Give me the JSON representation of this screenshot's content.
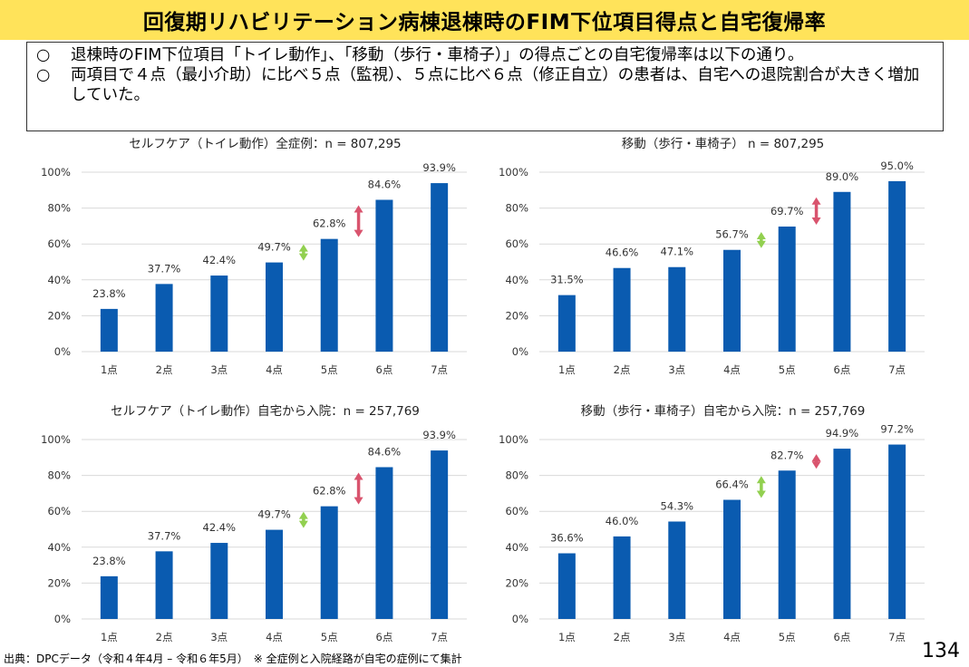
{
  "title": "回復期リハビリテーション病棟退棟時のFIM下位項目得点と自宅復帰率",
  "summary": [
    {
      "mark": "○",
      "text": "退棟時のFIM下位項目「トイレ動作」、「移動（歩行・車椅子）」の得点ごとの自宅復帰率は以下の通り。"
    },
    {
      "mark": "○",
      "text": "両項目で４点（最小介助）に比べ５点（監視）、５点に比べ６点（修正自立）の患者は、自宅への退院割合が大きく増加していた。"
    }
  ],
  "colors": {
    "bar": "#0a5bb0",
    "grid": "#d9d9d9",
    "arrow_green": "#92d050",
    "arrow_red": "#d9546e",
    "title_bg": "#ffe35a"
  },
  "chart_data": [
    {
      "type": "bar",
      "title": "セルフケア（トイレ動作）全症例：n = 807,295",
      "categories": [
        "1点",
        "2点",
        "3点",
        "4点",
        "5点",
        "6点",
        "7点"
      ],
      "values": [
        23.8,
        37.7,
        42.4,
        49.7,
        62.8,
        84.6,
        93.9
      ],
      "value_labels": [
        "23.8%",
        "37.7%",
        "42.4%",
        "49.7%",
        "62.8%",
        "84.6%",
        "93.9%"
      ],
      "y_ticks": [
        0,
        20,
        40,
        60,
        80,
        100
      ],
      "y_tick_labels": [
        "0%",
        "20%",
        "40%",
        "60%",
        "80%",
        "100%"
      ],
      "ylim": [
        0,
        100
      ],
      "grid": true,
      "annotations": [
        {
          "type": "double-arrow",
          "color": "green",
          "between": [
            "4点",
            "5点"
          ]
        },
        {
          "type": "double-arrow",
          "color": "red",
          "between": [
            "5点",
            "6点"
          ]
        }
      ]
    },
    {
      "type": "bar",
      "title": "移動（歩行・車椅子） n = 807,295",
      "categories": [
        "1点",
        "2点",
        "3点",
        "4点",
        "5点",
        "6点",
        "7点"
      ],
      "values": [
        31.5,
        46.6,
        47.1,
        56.7,
        69.7,
        89.0,
        95.0
      ],
      "value_labels": [
        "31.5%",
        "46.6%",
        "47.1%",
        "56.7%",
        "69.7%",
        "89.0%",
        "95.0%"
      ],
      "y_ticks": [
        0,
        20,
        40,
        60,
        80,
        100
      ],
      "y_tick_labels": [
        "0%",
        "20%",
        "40%",
        "60%",
        "80%",
        "100%"
      ],
      "ylim": [
        0,
        100
      ],
      "grid": true,
      "annotations": [
        {
          "type": "double-arrow",
          "color": "green",
          "between": [
            "4点",
            "5点"
          ]
        },
        {
          "type": "double-arrow",
          "color": "red",
          "between": [
            "5点",
            "6点"
          ]
        }
      ]
    },
    {
      "type": "bar",
      "title": "セルフケア（トイレ動作）自宅から入院：n = 257,769",
      "categories": [
        "1点",
        "2点",
        "3点",
        "4点",
        "5点",
        "6点",
        "7点"
      ],
      "values": [
        23.8,
        37.7,
        42.4,
        49.7,
        62.8,
        84.6,
        93.9
      ],
      "value_labels": [
        "23.8%",
        "37.7%",
        "42.4%",
        "49.7%",
        "62.8%",
        "84.6%",
        "93.9%"
      ],
      "y_ticks": [
        0,
        20,
        40,
        60,
        80,
        100
      ],
      "y_tick_labels": [
        "0%",
        "20%",
        "40%",
        "60%",
        "80%",
        "100%"
      ],
      "ylim": [
        0,
        100
      ],
      "grid": true,
      "annotations": [
        {
          "type": "double-arrow",
          "color": "green",
          "between": [
            "4点",
            "5点"
          ]
        },
        {
          "type": "double-arrow",
          "color": "red",
          "between": [
            "5点",
            "6点"
          ]
        }
      ]
    },
    {
      "type": "bar",
      "title": "移動（歩行・車椅子）自宅から入院：n = 257,769",
      "categories": [
        "1点",
        "2点",
        "3点",
        "4点",
        "5点",
        "6点",
        "7点"
      ],
      "values": [
        36.6,
        46.0,
        54.3,
        66.4,
        82.7,
        94.9,
        97.2
      ],
      "value_labels": [
        "36.6%",
        "46.0%",
        "54.3%",
        "66.4%",
        "82.7%",
        "94.9%",
        "97.2%"
      ],
      "y_ticks": [
        0,
        20,
        40,
        60,
        80,
        100
      ],
      "y_tick_labels": [
        "0%",
        "20%",
        "40%",
        "60%",
        "80%",
        "100%"
      ],
      "ylim": [
        0,
        100
      ],
      "grid": true,
      "annotations": [
        {
          "type": "double-arrow",
          "color": "green",
          "between": [
            "4点",
            "5点"
          ]
        },
        {
          "type": "double-arrow",
          "color": "red",
          "between": [
            "5点",
            "6点"
          ]
        }
      ]
    }
  ],
  "footer": {
    "source": "出典：DPCデータ（令和４年4月 – 令和６年5月）　※ 全症例と入院経路が自宅の症例にて集計",
    "page_number": "134"
  }
}
